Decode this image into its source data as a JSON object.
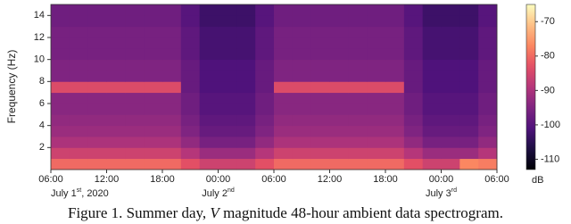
{
  "chart_data": {
    "type": "heatmap",
    "y_label": "Frequency (Hz)",
    "x_edges": [
      0,
      2,
      4,
      6,
      8,
      10,
      12,
      14,
      16,
      18,
      20,
      22,
      24,
      26,
      28,
      30,
      32,
      34,
      36,
      38,
      40,
      42,
      44,
      46,
      48
    ],
    "y_edges": [
      0,
      1,
      2,
      3,
      4,
      5,
      6,
      7,
      8,
      9,
      10,
      11,
      12,
      13,
      14,
      15
    ],
    "values": [
      [
        -80,
        -80,
        -80,
        -80,
        -80,
        -80,
        -80,
        -83,
        -86,
        -86,
        -86,
        -83,
        -80,
        -80,
        -80,
        -80,
        -80,
        -80,
        -80,
        -83,
        -86,
        -86,
        -77,
        -78
      ],
      [
        -86,
        -86,
        -86,
        -86,
        -86,
        -86,
        -86,
        -89,
        -92,
        -92,
        -92,
        -89,
        -86,
        -86,
        -86,
        -86,
        -86,
        -86,
        -86,
        -89,
        -92,
        -92,
        -92,
        -89
      ],
      [
        -90,
        -90,
        -90,
        -90,
        -90,
        -90,
        -90,
        -93,
        -96,
        -96,
        -96,
        -93,
        -90,
        -90,
        -90,
        -90,
        -90,
        -90,
        -90,
        -93,
        -96,
        -96,
        -96,
        -93
      ],
      [
        -92,
        -92,
        -92,
        -92,
        -92,
        -92,
        -92,
        -95,
        -98,
        -98,
        -98,
        -95,
        -92,
        -92,
        -92,
        -92,
        -92,
        -92,
        -92,
        -95,
        -98,
        -98,
        -98,
        -95
      ],
      [
        -93,
        -93,
        -93,
        -93,
        -93,
        -93,
        -93,
        -96,
        -99,
        -99,
        -99,
        -96,
        -93,
        -93,
        -93,
        -93,
        -93,
        -93,
        -93,
        -96,
        -99,
        -99,
        -99,
        -96
      ],
      [
        -94,
        -94,
        -94,
        -94,
        -94,
        -94,
        -94,
        -97,
        -100,
        -100,
        -100,
        -97,
        -94,
        -94,
        -94,
        -94,
        -94,
        -94,
        -94,
        -97,
        -100,
        -100,
        -100,
        -97
      ],
      [
        -94,
        -94,
        -94,
        -94,
        -94,
        -94,
        -94,
        -97,
        -100,
        -100,
        -100,
        -97,
        -94,
        -94,
        -94,
        -94,
        -94,
        -94,
        -94,
        -97,
        -100,
        -100,
        -100,
        -97
      ],
      [
        -84,
        -84,
        -84,
        -84,
        -84,
        -84,
        -84,
        -98,
        -101,
        -101,
        -101,
        -98,
        -84,
        -84,
        -84,
        -84,
        -84,
        -84,
        -84,
        -98,
        -101,
        -101,
        -101,
        -98
      ],
      [
        -95,
        -95,
        -95,
        -95,
        -95,
        -95,
        -95,
        -98,
        -101,
        -101,
        -101,
        -98,
        -95,
        -95,
        -95,
        -95,
        -95,
        -95,
        -95,
        -98,
        -101,
        -101,
        -101,
        -98
      ],
      [
        -95,
        -95,
        -95,
        -95,
        -95,
        -95,
        -95,
        -98,
        -101,
        -101,
        -101,
        -98,
        -95,
        -95,
        -95,
        -95,
        -95,
        -95,
        -95,
        -98,
        -101,
        -101,
        -101,
        -98
      ],
      [
        -96,
        -96,
        -96,
        -96,
        -96,
        -96,
        -96,
        -99,
        -102,
        -102,
        -102,
        -99,
        -96,
        -96,
        -96,
        -96,
        -96,
        -96,
        -96,
        -99,
        -102,
        -102,
        -102,
        -99
      ],
      [
        -96,
        -96,
        -96,
        -96,
        -96,
        -96,
        -96,
        -99,
        -102,
        -102,
        -102,
        -99,
        -96,
        -96,
        -96,
        -96,
        -96,
        -96,
        -96,
        -99,
        -102,
        -102,
        -102,
        -99
      ],
      [
        -96,
        -96,
        -96,
        -96,
        -96,
        -96,
        -96,
        -99,
        -102,
        -102,
        -102,
        -99,
        -96,
        -96,
        -96,
        -96,
        -96,
        -96,
        -96,
        -99,
        -102,
        -102,
        -102,
        -99
      ],
      [
        -97,
        -97,
        -97,
        -97,
        -97,
        -97,
        -97,
        -100,
        -103,
        -103,
        -103,
        -100,
        -97,
        -97,
        -97,
        -97,
        -97,
        -97,
        -97,
        -100,
        -103,
        -103,
        -103,
        -100
      ],
      [
        -97,
        -97,
        -97,
        -97,
        -97,
        -97,
        -97,
        -100,
        -103,
        -103,
        -103,
        -100,
        -97,
        -97,
        -97,
        -97,
        -97,
        -97,
        -97,
        -100,
        -103,
        -103,
        -103,
        -100
      ]
    ],
    "xlim": [
      0,
      48
    ],
    "xticks": [
      {
        "value": 0,
        "label": "06:00"
      },
      {
        "value": 6,
        "label": "12:00"
      },
      {
        "value": 12,
        "label": "18:00"
      },
      {
        "value": 18,
        "label": "00:00"
      },
      {
        "value": 24,
        "label": "06:00"
      },
      {
        "value": 30,
        "label": "12:00"
      },
      {
        "value": 36,
        "label": "18:00"
      },
      {
        "value": 42,
        "label": "00:00"
      },
      {
        "value": 48,
        "label": "06:00"
      }
    ],
    "ylim": [
      0,
      15
    ],
    "yticks": [
      2,
      4,
      6,
      8,
      10,
      12,
      14
    ],
    "date_labels": [
      {
        "x": 0,
        "text": "July 1",
        "sup": "st",
        "suffix": ", 2020"
      },
      {
        "x": 18,
        "text": "July 2",
        "sup": "nd",
        "suffix": ""
      },
      {
        "x": 42,
        "text": "July 3",
        "sup": "rd",
        "suffix": ""
      }
    ],
    "colorbar": {
      "label": "dB",
      "clim": [
        -113,
        -65
      ],
      "ticks": [
        -70,
        -80,
        -90,
        -100,
        -110
      ],
      "colormap": "magma"
    }
  },
  "caption": {
    "prefix": "Figure 1. Summer day, ",
    "italic": "V",
    "suffix": " magnitude 48-hour ambient data spectrogram."
  }
}
